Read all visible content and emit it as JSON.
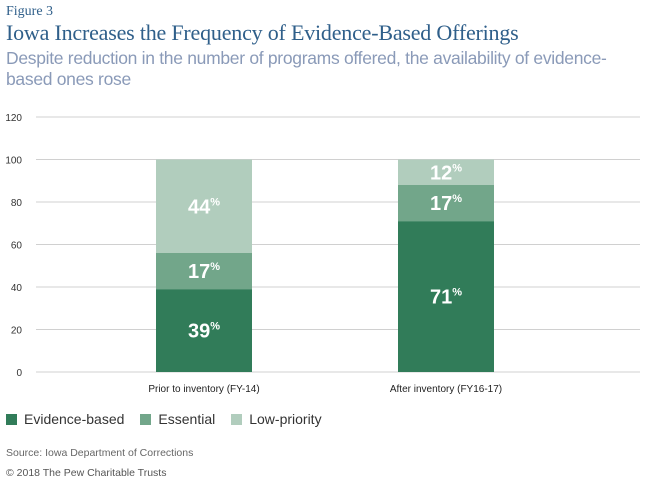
{
  "figure_label": "Figure 3",
  "title": "Iowa Increases the Frequency of Evidence-Based Offerings",
  "subtitle": "Despite reduction in the number of programs offered, the availability of evidence-based ones rose",
  "source": "Source: Iowa Department of Corrections",
  "copyright": "© 2018 The Pew Charitable Trusts",
  "chart_data": {
    "type": "bar",
    "stacked": true,
    "title": "Iowa Increases the Frequency of Evidence-Based Offerings",
    "subtitle": "Despite reduction in the number of programs offered, the availability of evidence-based ones rose",
    "categories": [
      "Prior to inventory (FY-14)",
      "After inventory (FY16-17)"
    ],
    "series": [
      {
        "name": "Evidence-based",
        "values": [
          39,
          71
        ],
        "labels": [
          "39%",
          "71%"
        ],
        "color": "#317c59"
      },
      {
        "name": "Essential",
        "values": [
          17,
          17
        ],
        "labels": [
          "17%",
          "17%"
        ],
        "color": "#72a68a"
      },
      {
        "name": "Low-priority",
        "values": [
          44,
          12
        ],
        "labels": [
          "44%",
          "12%"
        ],
        "color": "#b1cdbd"
      }
    ],
    "xlabel": "",
    "ylabel": "",
    "ylim": [
      0,
      120
    ],
    "yticks": [
      0,
      20,
      40,
      60,
      80,
      100,
      120
    ],
    "grid": true,
    "legend_position": "bottom-left"
  }
}
